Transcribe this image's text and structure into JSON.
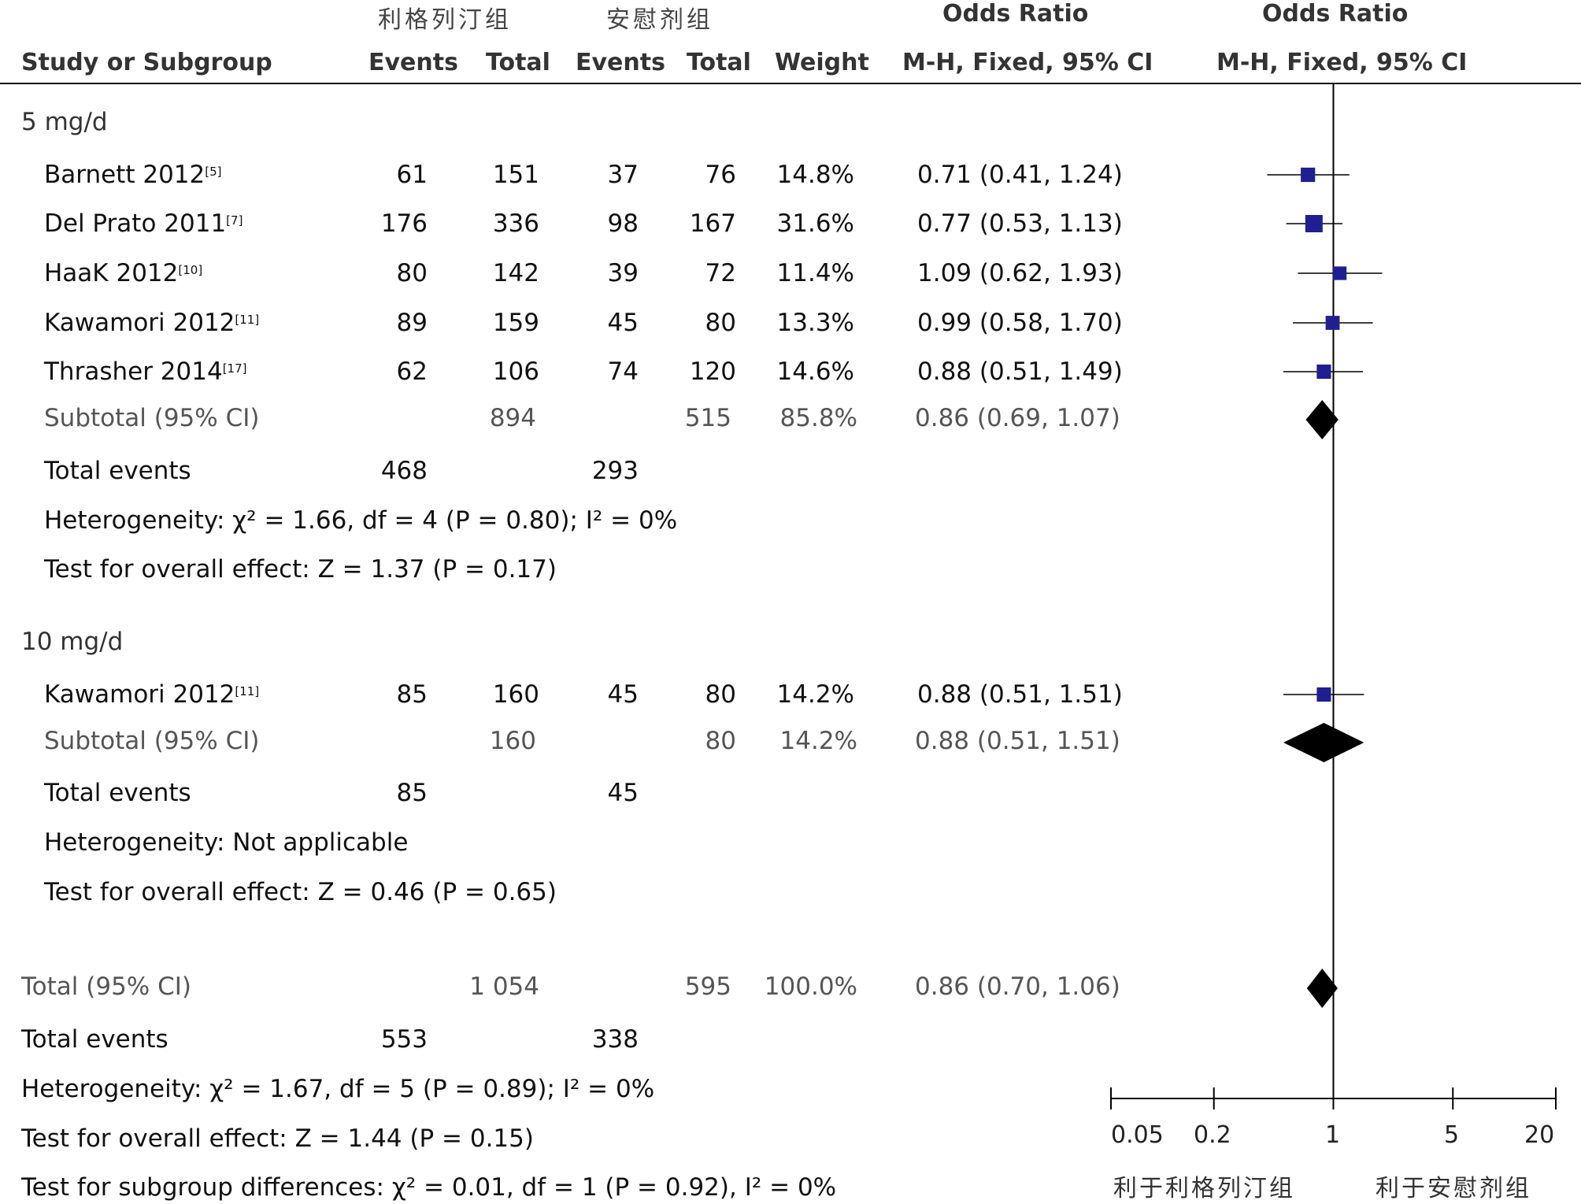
{
  "group_headers": {
    "left": "利格列汀组",
    "right": "安慰剂组"
  },
  "col_headers": {
    "study": "Study or Subgroup",
    "events1": "Events",
    "total1": "Total",
    "events2": "Events",
    "total2": "Total",
    "weight": "Weight",
    "or_title": "Odds Ratio",
    "or_method": "M-H, Fixed, 95% CI",
    "plot_title": "Odds Ratio",
    "plot_method": "M-H, Fixed, 95% CI"
  },
  "subgroups": [
    {
      "label": "5 mg/d",
      "studies": [
        {
          "name": "Barnett 2012",
          "ref": "[5]",
          "e1": "61",
          "t1": "151",
          "e2": "37",
          "t2": "76",
          "weight": "14.8%",
          "ci": "0.71 (0.41, 1.24)"
        },
        {
          "name": "Del Prato 2011",
          "ref": "[7]",
          "e1": "176",
          "t1": "336",
          "e2": "98",
          "t2": "167",
          "weight": "31.6%",
          "ci": "0.77 (0.53, 1.13)"
        },
        {
          "name": "HaaK 2012",
          "ref": "[10]",
          "e1": "80",
          "t1": "142",
          "e2": "39",
          "t2": "72",
          "weight": "11.4%",
          "ci": "1.09 (0.62, 1.93)"
        },
        {
          "name": "Kawamori 2012",
          "ref": "[11]",
          "e1": "89",
          "t1": "159",
          "e2": "45",
          "t2": "80",
          "weight": "13.3%",
          "ci": "0.99 (0.58, 1.70)"
        },
        {
          "name": "Thrasher 2014",
          "ref": "[17]",
          "e1": "62",
          "t1": "106",
          "e2": "74",
          "t2": "120",
          "weight": "14.6%",
          "ci": "0.88 (0.51, 1.49)"
        }
      ],
      "subtotal": {
        "label": "Subtotal (95% CI)",
        "t1": "894",
        "t2": "515",
        "weight": "85.8%",
        "ci": "0.86 (0.69, 1.07)"
      },
      "total_events": {
        "label": "Total events",
        "e1": "468",
        "e2": "293"
      },
      "heterogeneity": "Heterogeneity: χ² = 1.66, df = 4 (P = 0.80); I² = 0%",
      "overall": "Test for overall effect: Z = 1.37 (P = 0.17)"
    },
    {
      "label": "10 mg/d",
      "studies": [
        {
          "name": "Kawamori 2012",
          "ref": "[11]",
          "e1": "85",
          "t1": "160",
          "e2": "45",
          "t2": "80",
          "weight": "14.2%",
          "ci": "0.88 (0.51, 1.51)"
        }
      ],
      "subtotal": {
        "label": "Subtotal (95% CI)",
        "t1": "160",
        "t2": "80",
        "weight": "14.2%",
        "ci": "0.88 (0.51, 1.51)"
      },
      "total_events": {
        "label": "Total events",
        "e1": "85",
        "e2": "45"
      },
      "heterogeneity": "Heterogeneity: Not applicable",
      "overall": "Test for overall effect: Z = 0.46 (P = 0.65)"
    }
  ],
  "total": {
    "label": "Total (95% CI)",
    "t1": "1 054",
    "t2": "595",
    "weight": "100.0%",
    "ci": "0.86 (0.70, 1.06)"
  },
  "total_events": {
    "label": "Total events",
    "e1": "553",
    "e2": "338"
  },
  "heterogeneity": "Heterogeneity: χ² = 1.67, df = 5 (P = 0.89); I² = 0%",
  "overall": "Test for overall effect: Z = 1.44 (P = 0.15)",
  "subgroup_diff": "Test for subgroup differences: χ² = 0.01, df = 1 (P = 0.92), I² = 0%",
  "axis": {
    "ticks": [
      "0.05",
      "0.2",
      "1",
      "5",
      "20"
    ],
    "favours_left": "利于利格列汀组",
    "favours_right": "利于安慰剂组"
  },
  "colors": {
    "study_marker": "#1f1f8f",
    "diamond": "#000000",
    "line": "#000000"
  },
  "chart_data": {
    "type": "forest",
    "xscale": "log",
    "xlim": [
      0.05,
      20
    ],
    "xticks": [
      0.05,
      0.2,
      1,
      5,
      20
    ],
    "reference_line": 1,
    "studies": [
      {
        "id": "barnett",
        "or": 0.71,
        "lo": 0.41,
        "hi": 1.24,
        "weight": 14.8
      },
      {
        "id": "delprato",
        "or": 0.77,
        "lo": 0.53,
        "hi": 1.13,
        "weight": 31.6
      },
      {
        "id": "haak",
        "or": 1.09,
        "lo": 0.62,
        "hi": 1.93,
        "weight": 11.4
      },
      {
        "id": "kawamori5",
        "or": 0.99,
        "lo": 0.58,
        "hi": 1.7,
        "weight": 13.3
      },
      {
        "id": "thrasher",
        "or": 0.88,
        "lo": 0.51,
        "hi": 1.49,
        "weight": 14.6
      },
      {
        "id": "kawamori10",
        "or": 0.88,
        "lo": 0.51,
        "hi": 1.51,
        "weight": 14.2
      }
    ],
    "diamonds": [
      {
        "id": "subtotal-5",
        "or": 0.86,
        "lo": 0.69,
        "hi": 1.07
      },
      {
        "id": "subtotal-10",
        "or": 0.88,
        "lo": 0.51,
        "hi": 1.51
      },
      {
        "id": "total",
        "or": 0.86,
        "lo": 0.7,
        "hi": 1.06
      }
    ]
  }
}
